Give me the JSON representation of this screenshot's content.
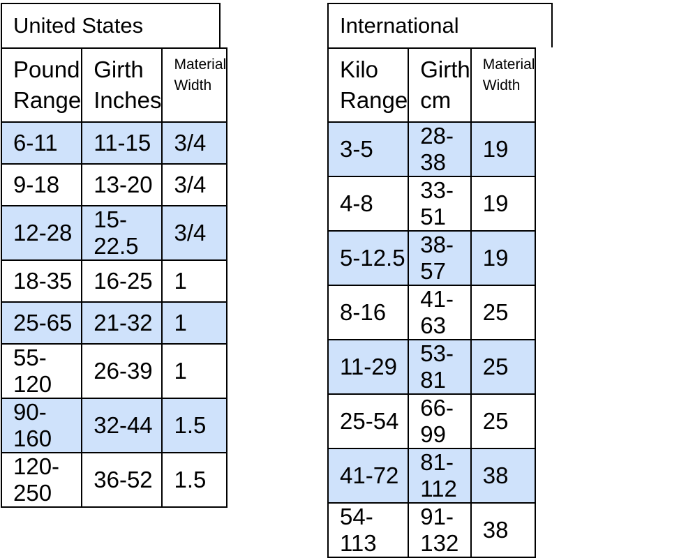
{
  "us_table": {
    "title": "United States",
    "headers": [
      {
        "line1": "Pound",
        "line2": "Range"
      },
      {
        "line1": "Girth",
        "line2": "Inches"
      },
      {
        "line1": "Material",
        "line2": "Width"
      }
    ],
    "rows": [
      [
        "6-11",
        "11-15",
        "3/4"
      ],
      [
        "9-18",
        "13-20",
        "3/4"
      ],
      [
        "12-28",
        "15-22.5",
        "3/4"
      ],
      [
        "18-35",
        "16-25",
        "1"
      ],
      [
        "25-65",
        "21-32",
        "1"
      ],
      [
        "55-120",
        "26-39",
        "1"
      ],
      [
        "90-160",
        "32-44",
        "1.5"
      ],
      [
        "120-250",
        "36-52",
        "1.5"
      ]
    ]
  },
  "intl_table": {
    "title": "International",
    "headers": [
      {
        "line1": "Kilo",
        "line2": "Range"
      },
      {
        "line1": "Girth",
        "line2": "cm"
      },
      {
        "line1": "Material",
        "line2": "Width"
      }
    ],
    "rows": [
      [
        "3-5",
        "28-38",
        "19"
      ],
      [
        "4-8",
        "33-51",
        "19"
      ],
      [
        "5-12.5",
        "38-57",
        "19"
      ],
      [
        "8-16",
        "41-63",
        "25"
      ],
      [
        "11-29",
        "53-81",
        "25"
      ],
      [
        "25-54",
        "66-99",
        "25"
      ],
      [
        "41-72",
        "81-112",
        "38"
      ],
      [
        "54-113",
        "91-132",
        "38"
      ]
    ]
  },
  "colors": {
    "shaded_row": "#cfe2fb",
    "border": "#000000"
  }
}
